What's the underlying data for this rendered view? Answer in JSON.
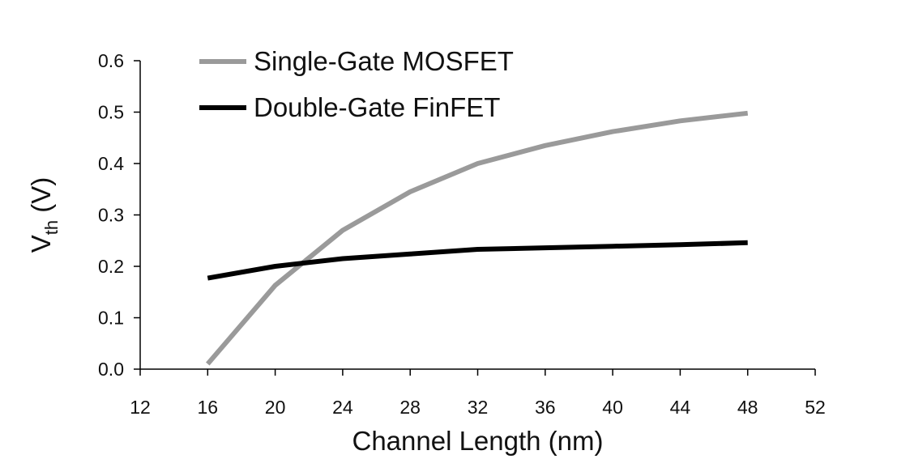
{
  "chart_data": {
    "type": "line",
    "xlabel": "Channel Length (nm)",
    "ylabel_main": "V",
    "ylabel_sub": "th",
    "ylabel_unit": " (V)",
    "xlim": [
      12,
      52
    ],
    "ylim": [
      0,
      0.6
    ],
    "xticks": [
      "12",
      "16",
      "20",
      "24",
      "28",
      "32",
      "36",
      "40",
      "44",
      "48",
      "52"
    ],
    "yticks": [
      "0.0",
      "0.1",
      "0.2",
      "0.3",
      "0.4",
      "0.5",
      "0.6"
    ],
    "grid": false,
    "legend_position": "top-left",
    "series": [
      {
        "name": "Single-Gate MOSFET",
        "color": "#9a9a9a",
        "x": [
          16,
          20,
          24,
          28,
          32,
          36,
          40,
          44,
          48
        ],
        "y": [
          0.01,
          0.163,
          0.27,
          0.345,
          0.4,
          0.435,
          0.462,
          0.483,
          0.498
        ]
      },
      {
        "name": "Double-Gate FinFET",
        "color": "#000000",
        "x": [
          16,
          20,
          24,
          28,
          32,
          36,
          40,
          44,
          48
        ],
        "y": [
          0.177,
          0.2,
          0.215,
          0.224,
          0.233,
          0.236,
          0.239,
          0.242,
          0.246
        ]
      }
    ]
  }
}
